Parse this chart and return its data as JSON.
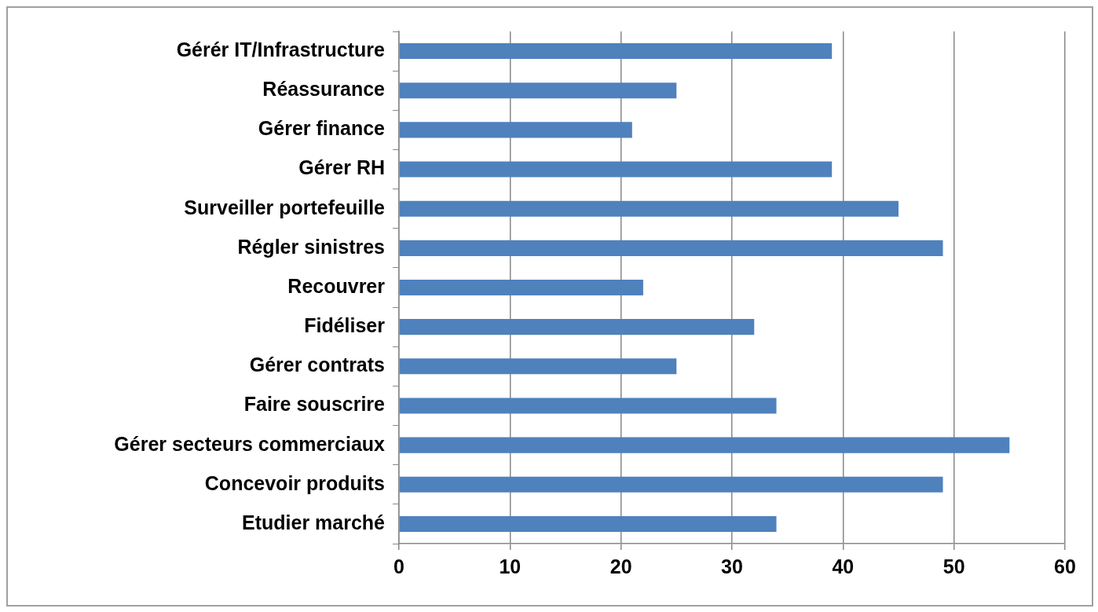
{
  "chart_data": {
    "type": "bar",
    "orientation": "horizontal",
    "categories": [
      "Gérér IT/Infrastructure",
      "Réassurance",
      "Gérer finance",
      "Gérer RH",
      "Surveiller portefeuille",
      "Régler sinistres",
      "Recouvrer",
      "Fidéliser",
      "Gérer contrats",
      "Faire souscrire",
      "Gérer secteurs commerciaux",
      "Concevoir produits",
      "Etudier marché"
    ],
    "values": [
      39,
      25,
      21,
      39,
      45,
      49,
      22,
      32,
      25,
      34,
      55,
      49,
      34
    ],
    "color": "#4f81bd",
    "xlim": [
      0,
      60
    ],
    "xticks": [
      0,
      10,
      20,
      30,
      40,
      50,
      60
    ],
    "grid": "x",
    "legend": false
  }
}
